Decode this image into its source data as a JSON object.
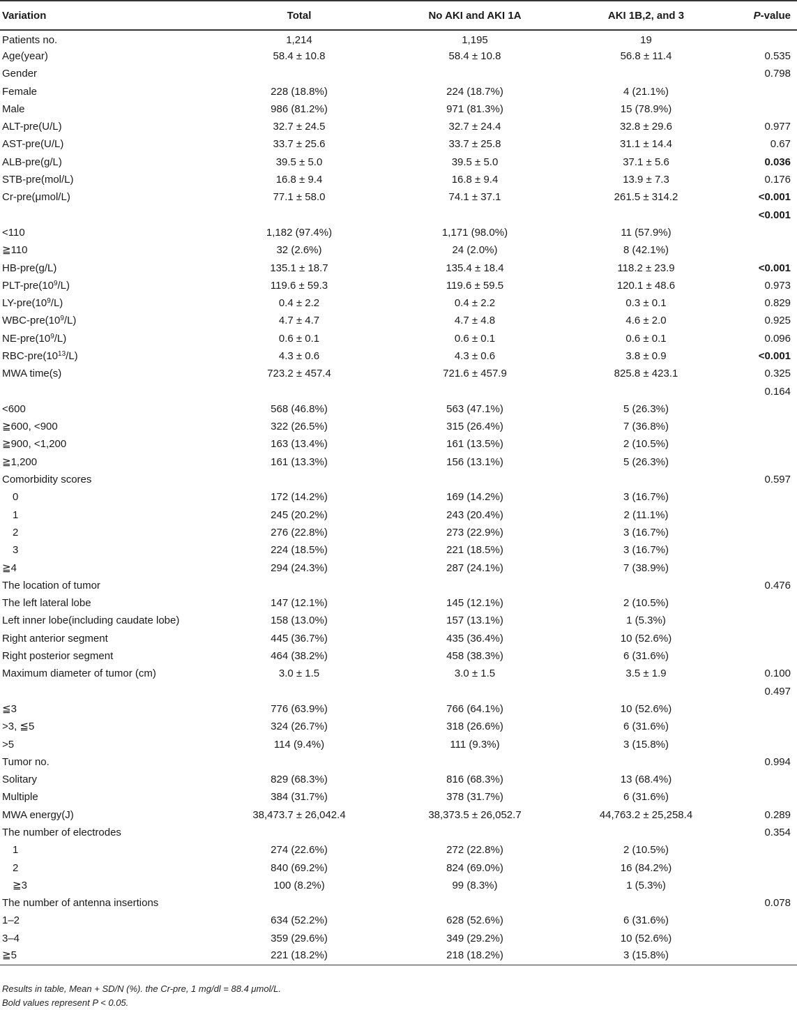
{
  "table": {
    "headers": {
      "variation": "Variation",
      "total": "Total",
      "group_a": "No AKI and AKI 1A",
      "group_b": "AKI 1B,2, and 3",
      "p_italic": "P",
      "p_rest": "-value"
    },
    "rows": [
      {
        "label": "Patients no.",
        "total": "1,214",
        "a": "1,195",
        "b": "19",
        "p": "",
        "bold": false,
        "indent": false
      },
      {
        "label": "Age(year)",
        "total": "58.4 ± 10.8",
        "a": "58.4 ± 10.8",
        "b": "56.8 ± 11.4",
        "p": "0.535",
        "bold": false,
        "indent": false
      },
      {
        "label": "Gender",
        "total": "",
        "a": "",
        "b": "",
        "p": "0.798",
        "bold": false,
        "indent": false
      },
      {
        "label": "Female",
        "total": "228 (18.8%)",
        "a": "224 (18.7%)",
        "b": "4 (21.1%)",
        "p": "",
        "bold": false,
        "indent": false
      },
      {
        "label": "Male",
        "total": "986 (81.2%)",
        "a": "971 (81.3%)",
        "b": "15 (78.9%)",
        "p": "",
        "bold": false,
        "indent": false
      },
      {
        "label": "ALT-pre(U/L)",
        "total": "32.7 ± 24.5",
        "a": "32.7 ± 24.4",
        "b": "32.8 ± 29.6",
        "p": "0.977",
        "bold": false,
        "indent": false
      },
      {
        "label": "AST-pre(U/L)",
        "total": "33.7 ± 25.6",
        "a": "33.7 ± 25.8",
        "b": "31.1 ± 14.4",
        "p": "0.67",
        "bold": false,
        "indent": false
      },
      {
        "label": "ALB-pre(g/L)",
        "total": "39.5 ± 5.0",
        "a": "39.5 ± 5.0",
        "b": "37.1 ± 5.6",
        "p": "0.036",
        "bold": true,
        "indent": false
      },
      {
        "label": "STB-pre(mol/L)",
        "total": "16.8 ± 9.4",
        "a": "16.8 ± 9.4",
        "b": "13.9 ± 7.3",
        "p": "0.176",
        "bold": false,
        "indent": false
      },
      {
        "label": "Cr-pre(μmol/L)",
        "total": "77.1 ± 58.0",
        "a": "74.1 ± 37.1",
        "b": "261.5 ± 314.2",
        "p": "<0.001",
        "bold": true,
        "indent": false
      },
      {
        "label": "",
        "total": "",
        "a": "",
        "b": "",
        "p": "<0.001",
        "bold": true,
        "indent": false
      },
      {
        "label": "<110",
        "total": "1,182 (97.4%)",
        "a": "1,171 (98.0%)",
        "b": "11 (57.9%)",
        "p": "",
        "bold": false,
        "indent": false
      },
      {
        "label": "≧110",
        "total": "32 (2.6%)",
        "a": "24 (2.0%)",
        "b": "8 (42.1%)",
        "p": "",
        "bold": false,
        "indent": false
      },
      {
        "label": "HB-pre(g/L)",
        "total": "135.1 ± 18.7",
        "a": "135.4 ± 18.4",
        "b": "118.2 ± 23.9",
        "p": "<0.001",
        "bold": true,
        "indent": false
      },
      {
        "label": "PLT-pre(10",
        "sup": "9",
        "label_after": "/L)",
        "total": "119.6 ± 59.3",
        "a": "119.6 ± 59.5",
        "b": "120.1 ± 48.6",
        "p": "0.973",
        "bold": false,
        "indent": false
      },
      {
        "label": "LY-pre(10",
        "sup": "9",
        "label_after": "/L)",
        "total": "0.4 ± 2.2",
        "a": "0.4 ± 2.2",
        "b": "0.3 ± 0.1",
        "p": "0.829",
        "bold": false,
        "indent": false
      },
      {
        "label": "WBC-pre(10",
        "sup": "9",
        "label_after": "/L)",
        "total": "4.7 ± 4.7",
        "a": "4.7 ± 4.8",
        "b": "4.6 ± 2.0",
        "p": "0.925",
        "bold": false,
        "indent": false
      },
      {
        "label": "NE-pre(10",
        "sup": "9",
        "label_after": "/L)",
        "total": "0.6 ± 0.1",
        "a": "0.6 ± 0.1",
        "b": "0.6 ± 0.1",
        "p": "0.096",
        "bold": false,
        "indent": false
      },
      {
        "label": "RBC-pre(10",
        "sup": "13",
        "label_after": "/L)",
        "total": "4.3 ± 0.6",
        "a": "4.3 ± 0.6",
        "b": "3.8 ± 0.9",
        "p": "<0.001",
        "bold": true,
        "indent": false
      },
      {
        "label": "MWA time(s)",
        "total": "723.2 ± 457.4",
        "a": "721.6 ± 457.9",
        "b": "825.8 ± 423.1",
        "p": "0.325",
        "bold": false,
        "indent": false
      },
      {
        "label": "",
        "total": "",
        "a": "",
        "b": "",
        "p": "0.164",
        "bold": false,
        "indent": false
      },
      {
        "label": "<600",
        "total": "568 (46.8%)",
        "a": "563 (47.1%)",
        "b": "5 (26.3%)",
        "p": "",
        "bold": false,
        "indent": false
      },
      {
        "label": "≧600, <900",
        "total": "322 (26.5%)",
        "a": "315 (26.4%)",
        "b": "7 (36.8%)",
        "p": "",
        "bold": false,
        "indent": false
      },
      {
        "label": "≧900, <1,200",
        "total": "163 (13.4%)",
        "a": "161 (13.5%)",
        "b": "2 (10.5%)",
        "p": "",
        "bold": false,
        "indent": false
      },
      {
        "label": "≧1,200",
        "total": "161 (13.3%)",
        "a": "156 (13.1%)",
        "b": "5 (26.3%)",
        "p": "",
        "bold": false,
        "indent": false
      },
      {
        "label": "Comorbidity scores",
        "total": "",
        "a": "",
        "b": "",
        "p": "0.597",
        "bold": false,
        "indent": false
      },
      {
        "label": "0",
        "total": "172 (14.2%)",
        "a": "169 (14.2%)",
        "b": "3 (16.7%)",
        "p": "",
        "bold": false,
        "indent": true
      },
      {
        "label": "1",
        "total": "245 (20.2%)",
        "a": "243 (20.4%)",
        "b": "2 (11.1%)",
        "p": "",
        "bold": false,
        "indent": true
      },
      {
        "label": "2",
        "total": "276 (22.8%)",
        "a": "273 (22.9%)",
        "b": "3 (16.7%)",
        "p": "",
        "bold": false,
        "indent": true
      },
      {
        "label": "3",
        "total": "224 (18.5%)",
        "a": "221 (18.5%)",
        "b": "3 (16.7%)",
        "p": "",
        "bold": false,
        "indent": true
      },
      {
        "label": "≧4",
        "total": "294 (24.3%)",
        "a": "287 (24.1%)",
        "b": "7 (38.9%)",
        "p": "",
        "bold": false,
        "indent": false
      },
      {
        "label": "The location of tumor",
        "total": "",
        "a": "",
        "b": "",
        "p": "0.476",
        "bold": false,
        "indent": false
      },
      {
        "label": "The left lateral lobe",
        "total": "147 (12.1%)",
        "a": "145 (12.1%)",
        "b": "2 (10.5%)",
        "p": "",
        "bold": false,
        "indent": false
      },
      {
        "label": "Left inner lobe(including caudate lobe)",
        "total": "158 (13.0%)",
        "a": "157 (13.1%)",
        "b": "1 (5.3%)",
        "p": "",
        "bold": false,
        "indent": false
      },
      {
        "label": "Right anterior segment",
        "total": "445 (36.7%)",
        "a": "435 (36.4%)",
        "b": "10 (52.6%)",
        "p": "",
        "bold": false,
        "indent": false
      },
      {
        "label": "Right posterior segment",
        "total": "464 (38.2%)",
        "a": "458 (38.3%)",
        "b": "6 (31.6%)",
        "p": "",
        "bold": false,
        "indent": false
      },
      {
        "label": "Maximum diameter of tumor (cm)",
        "total": "3.0 ± 1.5",
        "a": "3.0 ± 1.5",
        "b": "3.5 ± 1.9",
        "p": "0.100",
        "bold": false,
        "indent": false
      },
      {
        "label": "",
        "total": "",
        "a": "",
        "b": "",
        "p": "0.497",
        "bold": false,
        "indent": false
      },
      {
        "label": "≦3",
        "total": "776 (63.9%)",
        "a": "766 (64.1%)",
        "b": "10 (52.6%)",
        "p": "",
        "bold": false,
        "indent": false
      },
      {
        "label": ">3, ≦5",
        "total": "324 (26.7%)",
        "a": "318 (26.6%)",
        "b": "6 (31.6%)",
        "p": "",
        "bold": false,
        "indent": false
      },
      {
        "label": ">5",
        "total": "114 (9.4%)",
        "a": "111 (9.3%)",
        "b": "3 (15.8%)",
        "p": "",
        "bold": false,
        "indent": false
      },
      {
        "label": "Tumor no.",
        "total": "",
        "a": "",
        "b": "",
        "p": "0.994",
        "bold": false,
        "indent": false
      },
      {
        "label": "Solitary",
        "total": "829 (68.3%)",
        "a": "816 (68.3%)",
        "b": "13 (68.4%)",
        "p": "",
        "bold": false,
        "indent": false
      },
      {
        "label": "Multiple",
        "total": "384 (31.7%)",
        "a": "378 (31.7%)",
        "b": "6 (31.6%)",
        "p": "",
        "bold": false,
        "indent": false
      },
      {
        "label": "MWA energy(J)",
        "total": "38,473.7 ± 26,042.4",
        "a": "38,373.5 ± 26,052.7",
        "b": "44,763.2 ± 25,258.4",
        "p": "0.289",
        "bold": false,
        "indent": false
      },
      {
        "label": "The number of electrodes",
        "total": "",
        "a": "",
        "b": "",
        "p": "0.354",
        "bold": false,
        "indent": false
      },
      {
        "label": "1",
        "total": "274 (22.6%)",
        "a": "272 (22.8%)",
        "b": "2 (10.5%)",
        "p": "",
        "bold": false,
        "indent": true
      },
      {
        "label": "2",
        "total": "840 (69.2%)",
        "a": "824 (69.0%)",
        "b": "16 (84.2%)",
        "p": "",
        "bold": false,
        "indent": true
      },
      {
        "label": "≧3",
        "total": "100 (8.2%)",
        "a": "99 (8.3%)",
        "b": "1 (5.3%)",
        "p": "",
        "bold": false,
        "indent": true
      },
      {
        "label": "The number of antenna insertions",
        "total": "",
        "a": "",
        "b": "",
        "p": "0.078",
        "bold": false,
        "indent": false
      },
      {
        "label": "1–2",
        "total": "634 (52.2%)",
        "a": "628 (52.6%)",
        "b": "6 (31.6%)",
        "p": "",
        "bold": false,
        "indent": false
      },
      {
        "label": "3–4",
        "total": "359 (29.6%)",
        "a": "349 (29.2%)",
        "b": "10 (52.6%)",
        "p": "",
        "bold": false,
        "indent": false
      },
      {
        "label": "≧5",
        "total": "221 (18.2%)",
        "a": "218 (18.2%)",
        "b": "3 (15.8%)",
        "p": "",
        "bold": false,
        "indent": false
      }
    ]
  },
  "footnotes": {
    "line1": "Results in table, Mean + SD/N (%). the Cr-pre, 1 mg/dl = 88.4 μmol/L.",
    "line2": "Bold values represent P < 0.05."
  }
}
